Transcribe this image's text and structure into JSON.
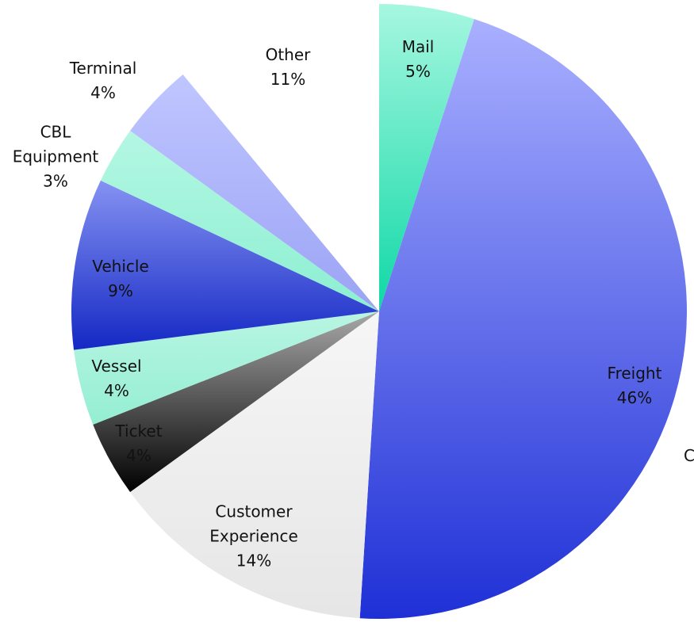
{
  "chart_data": {
    "type": "pie",
    "categories": [
      "Mail",
      "Freight",
      "Customer Experience",
      "Ticket",
      "Vessel",
      "Vehicle",
      "CBL Equipment",
      "Terminal",
      "Other"
    ],
    "values": [
      5,
      46,
      14,
      4,
      4,
      9,
      3,
      4,
      11
    ],
    "value_labels": [
      "5%",
      "46%",
      "14%",
      "4%",
      "4%",
      "9%",
      "3%",
      "4%",
      "11%"
    ],
    "colors": [
      [
        "#a6f7e0",
        "#0fd8a6"
      ],
      [
        "#a9b0ff",
        "#1f30d6"
      ],
      [
        "#f6f6f6",
        "#e6e6e6"
      ],
      [
        "#a8a8a8",
        "#000000"
      ],
      [
        "#b8f5e2",
        "#94eed2"
      ],
      [
        "#8592f2",
        "#1428c4"
      ],
      [
        "#b4f7e3",
        "#8cefd1"
      ],
      [
        "#c0c6ff",
        "#9ba3f5"
      ],
      [
        "#ffffff",
        "#ffffff"
      ]
    ],
    "annotation": "C"
  }
}
